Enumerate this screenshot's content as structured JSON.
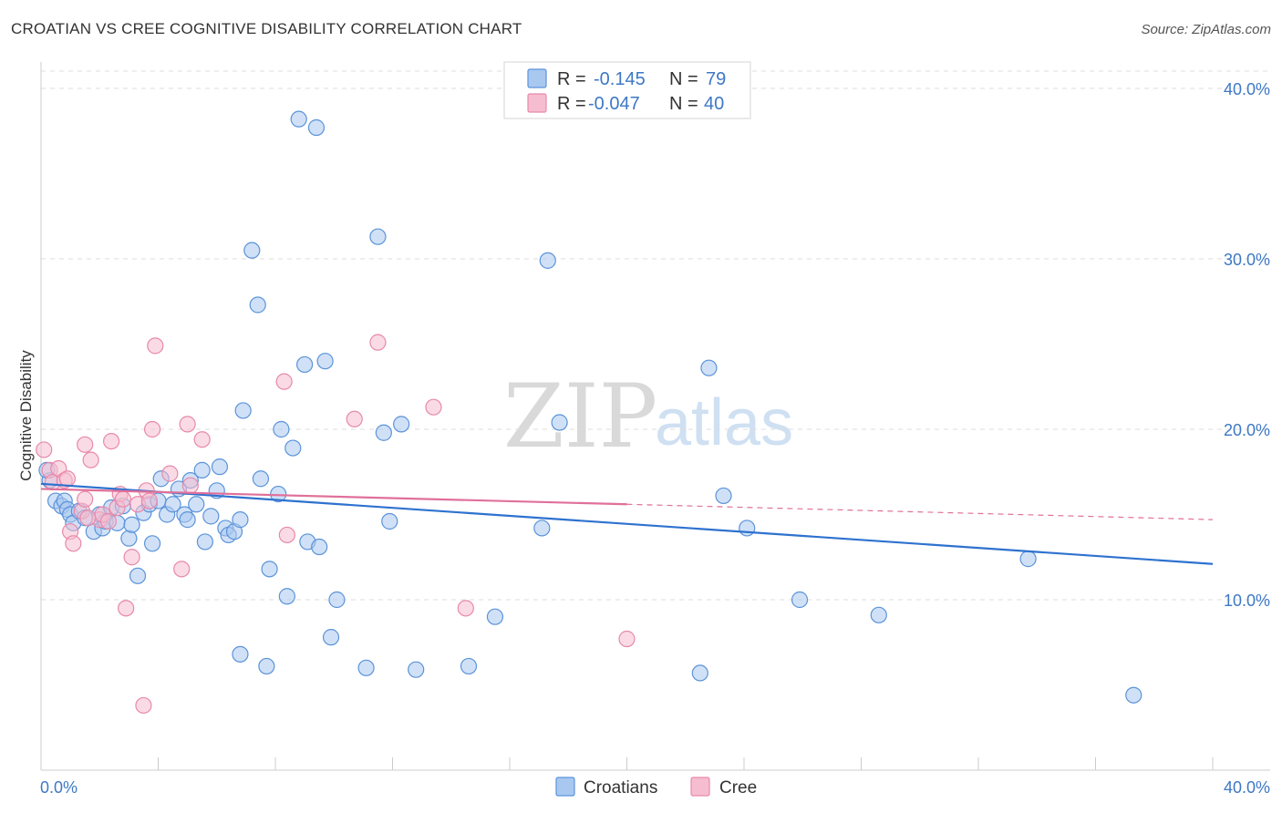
{
  "title": "CROATIAN VS CREE COGNITIVE DISABILITY CORRELATION CHART",
  "source": "Source: ZipAtlas.com",
  "watermark": {
    "zip": "ZIP",
    "atlas": "atlas"
  },
  "colors": {
    "croatians_fill": "#a9c8f0",
    "croatians_stroke": "#5b93d9",
    "croatians_line": "#2e72cf",
    "cree_fill": "#f6bdd0",
    "cree_stroke": "#e889aa",
    "cree_line": "#e0709a",
    "tick_label": "#3d78c5",
    "grid": "#dddddd"
  },
  "legend": {
    "rows": [
      {
        "r_label": "R =",
        "r_value": "-0.145",
        "n_label": "N =",
        "n_value": "79"
      },
      {
        "r_label": "R =",
        "r_value": "-0.047",
        "n_label": "N =",
        "n_value": "40"
      }
    ]
  },
  "bottom_legend": [
    "Croatians",
    "Cree"
  ],
  "chart_data": {
    "type": "scatter",
    "xlabel": "",
    "ylabel": "Cognitive Disability",
    "xlim": [
      0,
      40
    ],
    "ylim": [
      0,
      40
    ],
    "x_tick_labels": [
      "0.0%",
      "40.0%"
    ],
    "y_ticks": [
      10,
      20,
      30,
      40
    ],
    "y_tick_labels": [
      "10.0%",
      "20.0%",
      "30.0%",
      "40.0%"
    ],
    "grid": "horizontal dashed",
    "legend_position": "top-center",
    "series": [
      {
        "name": "Croatians",
        "r": -0.145,
        "n": 79,
        "trend": {
          "x0": 0,
          "y0": 16.8,
          "x1": 40,
          "y1": 12.1
        },
        "points": [
          [
            0.3,
            17.0
          ],
          [
            0.5,
            15.8
          ],
          [
            0.7,
            15.5
          ],
          [
            0.8,
            15.8
          ],
          [
            0.9,
            15.3
          ],
          [
            1.0,
            15.0
          ],
          [
            1.1,
            14.5
          ],
          [
            1.3,
            15.2
          ],
          [
            1.5,
            14.8
          ],
          [
            1.8,
            14.0
          ],
          [
            2.0,
            15.0
          ],
          [
            2.1,
            14.2
          ],
          [
            2.2,
            14.6
          ],
          [
            2.4,
            15.4
          ],
          [
            2.6,
            14.5
          ],
          [
            2.8,
            15.5
          ],
          [
            3.0,
            13.6
          ],
          [
            3.1,
            14.4
          ],
          [
            3.3,
            11.4
          ],
          [
            3.5,
            15.1
          ],
          [
            3.7,
            15.6
          ],
          [
            3.8,
            13.3
          ],
          [
            4.0,
            15.8
          ],
          [
            4.1,
            17.1
          ],
          [
            4.3,
            15.0
          ],
          [
            4.5,
            15.6
          ],
          [
            4.7,
            16.5
          ],
          [
            4.9,
            15.0
          ],
          [
            5.0,
            14.7
          ],
          [
            5.1,
            17.0
          ],
          [
            5.3,
            15.6
          ],
          [
            5.5,
            17.6
          ],
          [
            5.6,
            13.4
          ],
          [
            5.8,
            14.9
          ],
          [
            6.0,
            16.4
          ],
          [
            6.1,
            17.8
          ],
          [
            6.3,
            14.2
          ],
          [
            6.4,
            13.8
          ],
          [
            6.6,
            14.0
          ],
          [
            6.8,
            14.7
          ],
          [
            6.8,
            6.8
          ],
          [
            6.9,
            21.1
          ],
          [
            7.2,
            30.5
          ],
          [
            7.4,
            27.3
          ],
          [
            7.5,
            17.1
          ],
          [
            7.7,
            6.1
          ],
          [
            7.8,
            11.8
          ],
          [
            8.1,
            16.2
          ],
          [
            8.2,
            20.0
          ],
          [
            8.4,
            10.2
          ],
          [
            8.6,
            18.9
          ],
          [
            8.8,
            38.2
          ],
          [
            9.0,
            23.8
          ],
          [
            9.1,
            13.4
          ],
          [
            9.4,
            37.7
          ],
          [
            9.5,
            13.1
          ],
          [
            9.7,
            24.0
          ],
          [
            9.9,
            7.8
          ],
          [
            10.1,
            10.0
          ],
          [
            11.1,
            6.0
          ],
          [
            11.5,
            31.3
          ],
          [
            11.7,
            19.8
          ],
          [
            11.9,
            14.6
          ],
          [
            12.3,
            20.3
          ],
          [
            12.8,
            5.9
          ],
          [
            14.6,
            6.1
          ],
          [
            15.5,
            9.0
          ],
          [
            17.1,
            14.2
          ],
          [
            17.3,
            29.9
          ],
          [
            17.7,
            20.4
          ],
          [
            22.5,
            5.7
          ],
          [
            22.8,
            23.6
          ],
          [
            23.3,
            16.1
          ],
          [
            24.1,
            14.2
          ],
          [
            25.9,
            10.0
          ],
          [
            28.6,
            9.1
          ],
          [
            33.7,
            12.4
          ],
          [
            37.3,
            4.4
          ],
          [
            0.2,
            17.6
          ]
        ]
      },
      {
        "name": "Cree",
        "r": -0.047,
        "n": 40,
        "trend": {
          "x0": 0,
          "y0": 16.5,
          "x1": 20,
          "y1": 15.6,
          "dash_to": {
            "x": 40,
            "y": 14.7
          }
        },
        "points": [
          [
            0.1,
            18.8
          ],
          [
            0.3,
            17.6
          ],
          [
            0.4,
            16.9
          ],
          [
            0.6,
            17.7
          ],
          [
            0.8,
            17.0
          ],
          [
            0.9,
            17.1
          ],
          [
            1.0,
            14.0
          ],
          [
            1.1,
            13.3
          ],
          [
            1.4,
            15.2
          ],
          [
            1.5,
            15.9
          ],
          [
            1.5,
            19.1
          ],
          [
            1.7,
            18.2
          ],
          [
            2.0,
            14.7
          ],
          [
            2.1,
            15.0
          ],
          [
            2.3,
            14.6
          ],
          [
            2.4,
            19.3
          ],
          [
            2.6,
            15.4
          ],
          [
            2.7,
            16.2
          ],
          [
            2.8,
            15.9
          ],
          [
            2.9,
            9.5
          ],
          [
            3.1,
            12.5
          ],
          [
            3.3,
            15.6
          ],
          [
            3.5,
            3.8
          ],
          [
            3.6,
            16.4
          ],
          [
            3.7,
            15.8
          ],
          [
            3.8,
            20.0
          ],
          [
            3.9,
            24.9
          ],
          [
            4.4,
            17.4
          ],
          [
            4.8,
            11.8
          ],
          [
            5.0,
            20.3
          ],
          [
            5.1,
            16.7
          ],
          [
            5.5,
            19.4
          ],
          [
            8.3,
            22.8
          ],
          [
            8.4,
            13.8
          ],
          [
            10.7,
            20.6
          ],
          [
            11.5,
            25.1
          ],
          [
            13.4,
            21.3
          ],
          [
            14.5,
            9.5
          ],
          [
            20.0,
            7.7
          ],
          [
            1.6,
            14.8
          ]
        ]
      }
    ]
  }
}
